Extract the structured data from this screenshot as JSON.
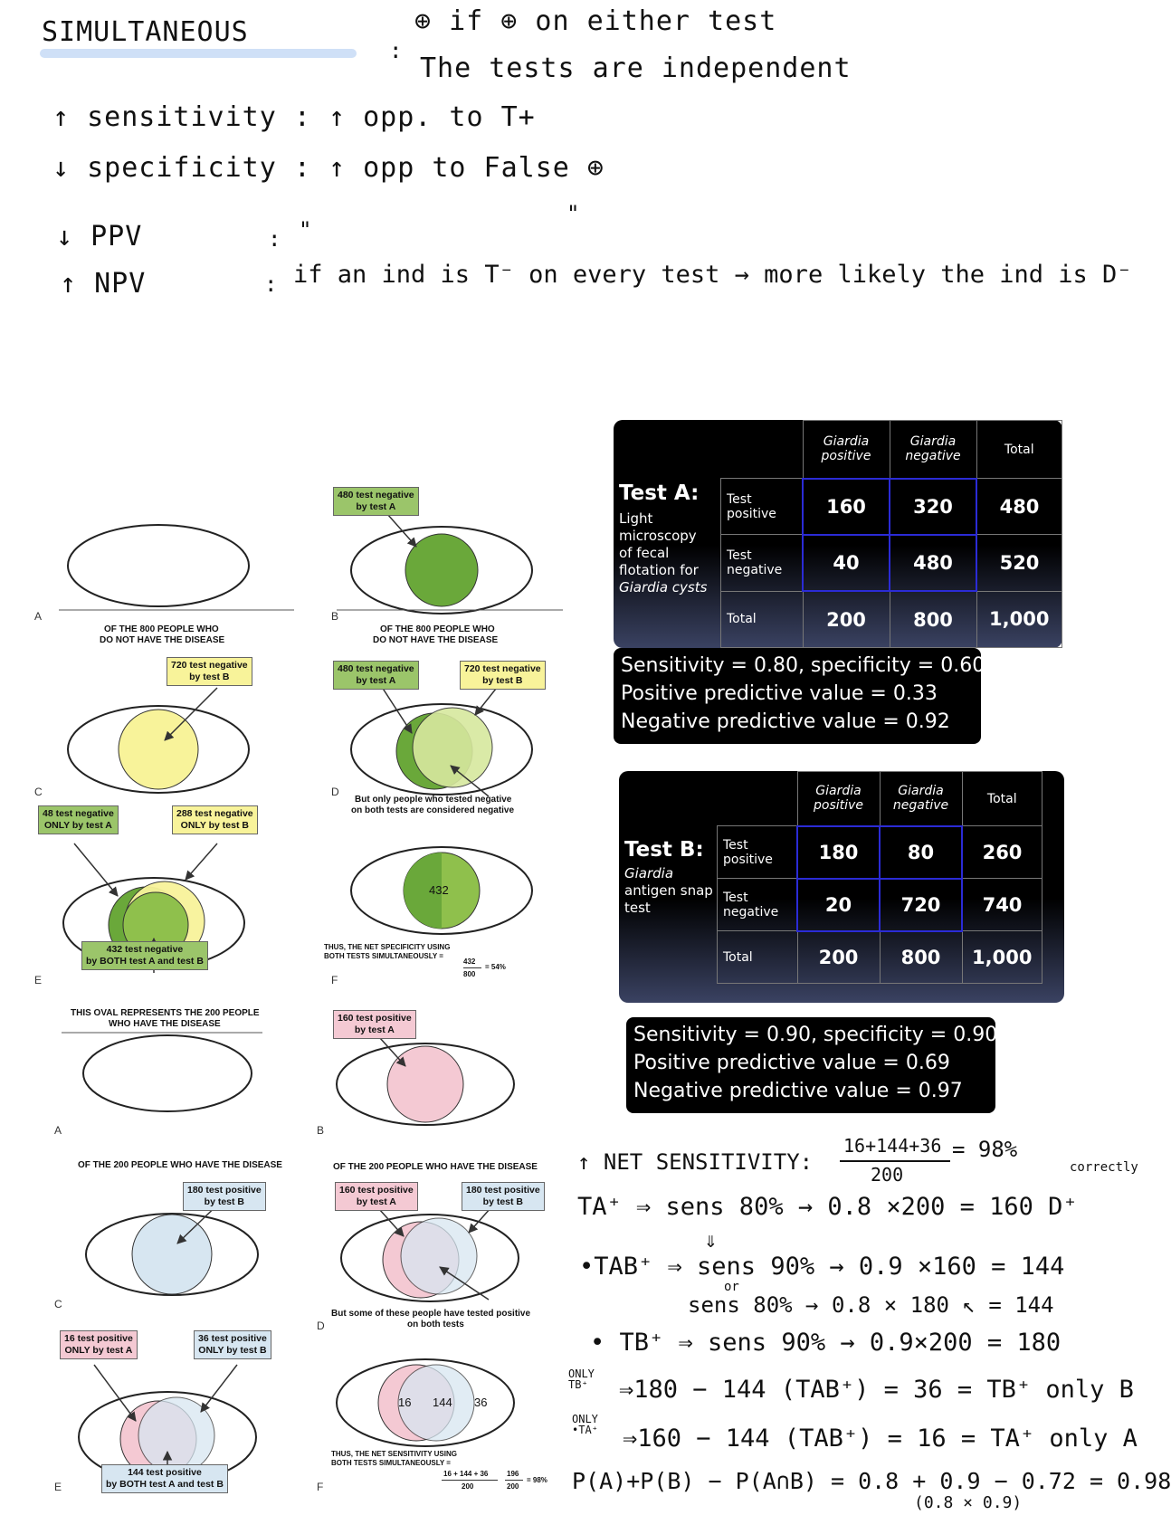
{
  "notes": {
    "heading": "SIMULTANEOUS",
    "rule_a": "⊕ if ⊕ on either test",
    "rule_b": "The tests are independent",
    "sens": "↑ sensitivity : ↑ opp. to T+",
    "spec": "↓ specificity : ↑ opp to False ⊕",
    "ditto": "\"",
    "ppv": "↓ PPV",
    "npv": "↑ NPV",
    "colon1": ":",
    "colon2": ":",
    "colon3": ":",
    "ditto2": "\"",
    "npv_expl": "if an ind is T⁻ on every test → more likely the ind is D⁻"
  },
  "spec_panel": {
    "title1": "OF THE 800 PEOPLE WHO",
    "title1b": "DO NOT HAVE THE DISEASE",
    "title2": "OF THE 800 PEOPLE WHO",
    "title2b": "DO NOT HAVE THE DISEASE",
    "lab_480a": "480 test negative",
    "lab_480b": "by test A",
    "lab_480c": "480 test negative",
    "lab_480d": "by test A",
    "lab_720a": "720 test negative",
    "lab_720b": "by test B",
    "lab_720c": "720 test negative",
    "lab_720d": "by test B",
    "lab_48a": "48 test negative",
    "lab_48b": "ONLY by test A",
    "lab_288a": "288 test negative",
    "lab_288b": "ONLY by test B",
    "lab_432a": "432 test negative",
    "lab_432b": "by BOTH test A and test B",
    "cap_d1": "But only people who tested negative",
    "cap_d2": "on both tests are considered negative",
    "num_432": "432",
    "net1": "THUS, THE NET SPECIFICITY USING",
    "net2": "BOTH TESTS SIMULTANEOUSLY =",
    "frac_num": "432",
    "frac_den": "800",
    "frac_res": "= 54%",
    "letters": [
      "A",
      "B",
      "C",
      "D",
      "E",
      "F"
    ]
  },
  "sens_panel": {
    "title0a": "THIS OVAL REPRESENTS THE 200 PEOPLE",
    "title0b": "WHO HAVE THE DISEASE",
    "title1": "OF THE 200 PEOPLE WHO HAVE THE DISEASE",
    "title2": "OF THE 200 PEOPLE WHO HAVE THE DISEASE",
    "lab_160a": "160 test positive",
    "lab_160b": "by test A",
    "lab_160c": "160 test positive",
    "lab_160d": "by test A",
    "lab_180a": "180 test positive",
    "lab_180b": "by test B",
    "lab_180c": "180 test positive",
    "lab_180d": "by test B",
    "lab_16a": "16 test positive",
    "lab_16b": "ONLY by test A",
    "lab_36a": "36 test positive",
    "lab_36b": "ONLY by test B",
    "lab_144a": "144 test positive",
    "lab_144b": "by BOTH test A and test B",
    "cap_d1": "But some of these people have tested positive",
    "cap_d2": "on both tests",
    "n16": "16",
    "n144": "144",
    "n36": "36",
    "net1": "THUS, THE NET SENSITIVITY USING",
    "net2": "BOTH TESTS SIMULTANEOUSLY =",
    "frac_num": "16 + 144 + 36",
    "frac_den": "200",
    "frac2_num": "196",
    "frac2_den": "200",
    "frac_res": "= 98%",
    "letters": [
      "A",
      "B",
      "C",
      "D",
      "E",
      "F"
    ]
  },
  "test_a": {
    "name": "Test A:",
    "desc1": "Light",
    "desc2": "microscopy",
    "desc3": "of fecal",
    "desc4": "flotation for",
    "desc5": "Giardia cysts",
    "h_pos": [
      "Giardia",
      "positive"
    ],
    "h_neg": [
      "Giardia",
      "negative"
    ],
    "h_tot": "Total",
    "r1": [
      "Test",
      "positive"
    ],
    "r2": [
      "Test",
      "negative"
    ],
    "r3": "Total",
    "cells": [
      [
        "160",
        "320",
        "480"
      ],
      [
        "40",
        "480",
        "520"
      ],
      [
        "200",
        "800",
        "1,000"
      ]
    ],
    "stats": [
      "Sensitivity = 0.80, specificity = 0.60",
      "Positive predictive value = 0.33",
      "Negative predictive value = 0.92"
    ]
  },
  "test_b": {
    "name": "Test B:",
    "desc1": "Giardia",
    "desc2": "antigen snap",
    "desc3": "test",
    "h_pos": [
      "Giardia",
      "positive"
    ],
    "h_neg": [
      "Giardia",
      "negative"
    ],
    "h_tot": "Total",
    "r1": [
      "Test",
      "positive"
    ],
    "r2": [
      "Test",
      "negative"
    ],
    "r3": "Total",
    "cells": [
      [
        "180",
        "80",
        "260"
      ],
      [
        "20",
        "720",
        "740"
      ],
      [
        "200",
        "800",
        "1,000"
      ]
    ],
    "stats": [
      "Sensitivity = 0.90, specificity = 0.90",
      "Positive predictive value = 0.69",
      "Negative predictive value = 0.97"
    ]
  },
  "calc": {
    "net": "↑ NET SENSITIVITY:",
    "net_frac_num": "16+144+36",
    "net_frac_den": "200",
    "net_res": "= 98%",
    "correctly": "correctly",
    "l1": "TA⁺ ⇒ sens 80% → 0.8 ×200 = 160  D⁺",
    "arrow": "⇓",
    "l2": "•TAB⁺ ⇒ sens 90% → 0.9 ×160 = 144",
    "or": "or",
    "l3": "sens 80% → 0.8 × 180 ↖ = 144",
    "l4": "• TB⁺ ⇒ sens 90% → 0.9×200 = 180",
    "l5_tag": "ONLY TB⁺",
    "l5": "⇒180 − 144 (TAB⁺) = 36 = TB⁺ only B",
    "l6_tag": "ONLY •TA⁺",
    "l6": "⇒160 − 144 (TAB⁺) = 16 = TA⁺ only A",
    "l7": "P(A)+P(B) − P(A∩B) = 0.8 + 0.9 − 0.72 = 0.98",
    "l8": "(0.8 × 0.9)"
  }
}
